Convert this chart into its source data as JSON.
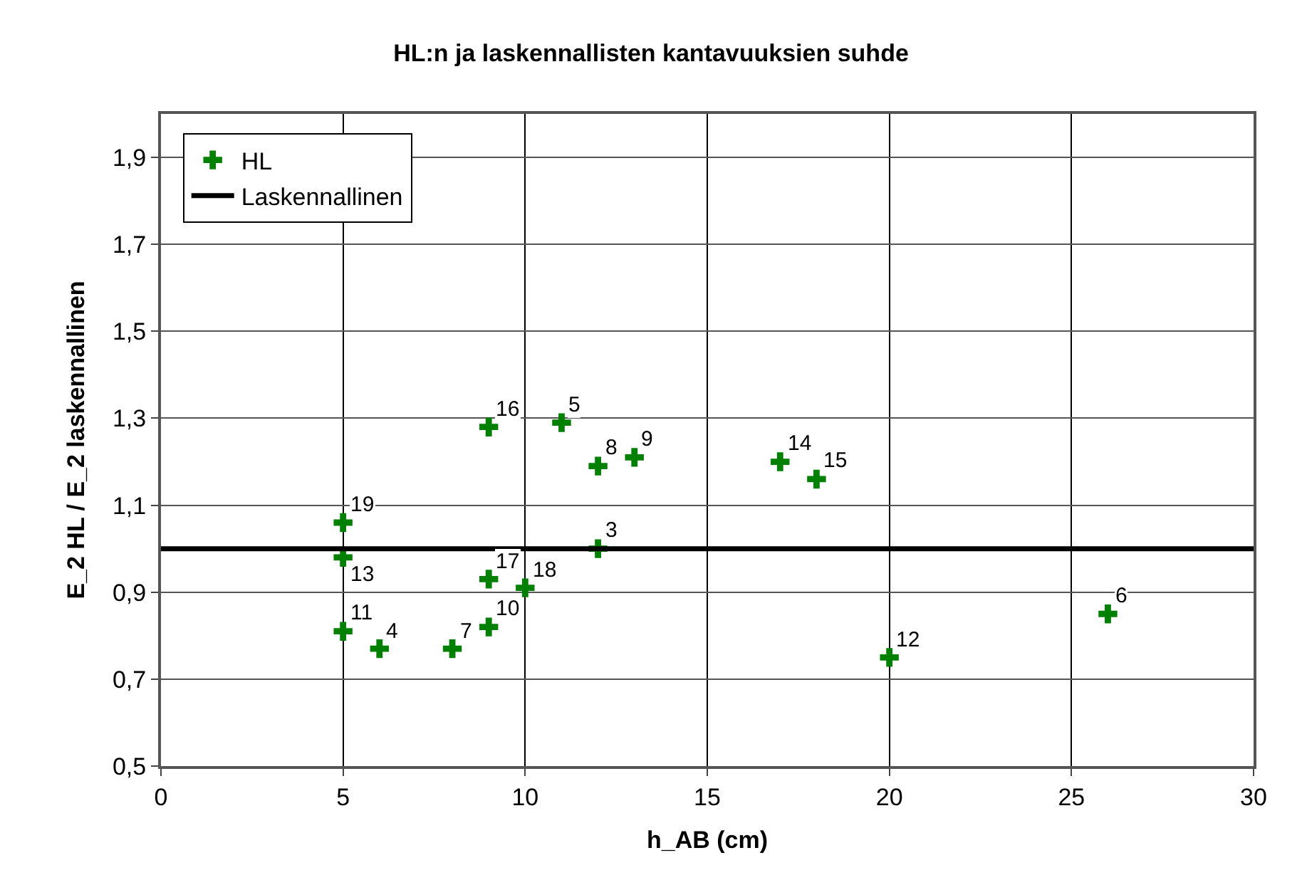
{
  "chart_data": {
    "type": "scatter",
    "title": "HL:n ja laskennallisten kantavuuksien suhde",
    "xlabel": "h_AB (cm)",
    "ylabel": "E_2 HL / E_2 laskennallinen",
    "x": [
      9,
      11,
      12,
      13,
      5,
      5,
      12,
      9,
      10,
      5,
      9,
      6,
      8,
      17,
      18,
      20,
      26
    ],
    "series": [
      {
        "name": "HL",
        "color": "#008000",
        "values": [
          1.28,
          1.29,
          1.19,
          1.21,
          1.06,
          0.98,
          1.0,
          0.93,
          0.91,
          0.81,
          0.82,
          0.77,
          0.77,
          1.2,
          1.16,
          0.75,
          0.85
        ]
      }
    ],
    "annotations": [
      {
        "text": "16",
        "x": 9,
        "y": 1.28
      },
      {
        "text": "5",
        "x": 11,
        "y": 1.29
      },
      {
        "text": "8",
        "x": 12,
        "y": 1.19
      },
      {
        "text": "9",
        "x": 13,
        "y": 1.21
      },
      {
        "text": "19",
        "x": 5,
        "y": 1.06
      },
      {
        "text": "13",
        "x": 5,
        "y": 0.98
      },
      {
        "text": "3",
        "x": 12,
        "y": 1.0
      },
      {
        "text": "17",
        "x": 9,
        "y": 0.93
      },
      {
        "text": "18",
        "x": 10,
        "y": 0.91
      },
      {
        "text": "11",
        "x": 5,
        "y": 0.81
      },
      {
        "text": "10",
        "x": 9,
        "y": 0.82
      },
      {
        "text": "4",
        "x": 6,
        "y": 0.77
      },
      {
        "text": "7",
        "x": 8,
        "y": 0.77
      },
      {
        "text": "14",
        "x": 17,
        "y": 1.2
      },
      {
        "text": "15",
        "x": 18,
        "y": 1.16
      },
      {
        "text": "12",
        "x": 20,
        "y": 0.75
      },
      {
        "text": "6",
        "x": 26,
        "y": 0.85
      }
    ],
    "ref_lines": [
      {
        "axis": "y",
        "value": 1.0,
        "label": "Laskennallinen",
        "color": "#000000",
        "line_style": "solid"
      }
    ],
    "xlim": [
      0,
      30
    ],
    "xticks": [
      0,
      5,
      10,
      15,
      20,
      25,
      30
    ],
    "ylim": [
      0.5,
      2.0
    ],
    "yticks": [
      {
        "value": 0.5,
        "label": "0,5"
      },
      {
        "value": 0.7,
        "label": "0,7"
      },
      {
        "value": 0.9,
        "label": "0,9"
      },
      {
        "value": 1.1,
        "label": "1,1"
      },
      {
        "value": 1.3,
        "label": "1,3"
      },
      {
        "value": 1.5,
        "label": "1,5"
      },
      {
        "value": 1.7,
        "label": "1,7"
      },
      {
        "value": 1.9,
        "label": "1,9"
      }
    ],
    "grid": true,
    "legend": "top left",
    "marker": "cross"
  }
}
